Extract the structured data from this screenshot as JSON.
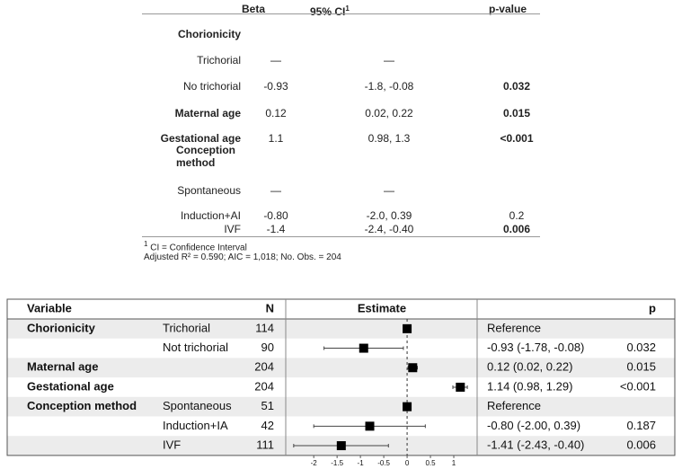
{
  "regression_table": {
    "headers": {
      "beta": "Beta",
      "ci": "95% CI",
      "p": "p-value"
    },
    "marker": "1",
    "rows": [
      {
        "label": "Chorionicity",
        "beta": null,
        "ci": null,
        "p": null,
        "bold_label": true,
        "bold_p": false
      },
      {
        "label": "Trichorial",
        "beta": "—",
        "ci": "—",
        "p": null,
        "bold_label": false,
        "bold_p": false
      },
      {
        "label": "No trichorial",
        "beta": "-0.93",
        "ci": "-1.8, -0.08",
        "p": "0.032",
        "bold_label": false,
        "bold_p": true
      },
      {
        "label": "Maternal age",
        "beta": "0.12",
        "ci": "0.02, 0.22",
        "p": "0.015",
        "bold_label": true,
        "bold_p": true
      },
      {
        "label": "Gestational age",
        "beta": "1.1",
        "ci": "0.98, 1.3",
        "p": "<0.001",
        "bold_label": true,
        "bold_p": true
      },
      {
        "label": "Conception method",
        "beta": null,
        "ci": null,
        "p": null,
        "bold_label": true,
        "bold_p": false
      },
      {
        "label": "Spontaneous",
        "beta": "—",
        "ci": "—",
        "p": null,
        "bold_label": false,
        "bold_p": false
      },
      {
        "label": "Induction+AI",
        "beta": "-0.80",
        "ci": "-2.0, 0.39",
        "p": "0.2",
        "bold_label": false,
        "bold_p": false
      },
      {
        "label": "IVF",
        "beta": "-1.4",
        "ci": "-2.4, -0.40",
        "p": "0.006",
        "bold_label": false,
        "bold_p": true
      }
    ],
    "footnotes": [
      "CI = Confidence Interval",
      "Adjusted R² = 0.590; AIC = 1,018; No. Obs. = 204"
    ]
  },
  "forest_plot": {
    "headers": {
      "variable": "Variable",
      "n": "N",
      "estimate": "Estimate",
      "p": "p"
    },
    "xlim": [
      -2.6,
      1.5
    ],
    "xticks": [
      -2,
      -1.5,
      -1,
      -0.5,
      0,
      0.5,
      1
    ],
    "rows": [
      {
        "variable": "Chorionicity",
        "group": "Trichorial",
        "n": 114,
        "estimate": 0,
        "low": null,
        "high": null,
        "ci_text": "Reference",
        "p": null
      },
      {
        "variable": null,
        "group": "Not trichorial",
        "n": 90,
        "estimate": -0.93,
        "low": -1.78,
        "high": -0.08,
        "ci_text": "-0.93 (-1.78, -0.08)",
        "p": "0.032"
      },
      {
        "variable": "Maternal age",
        "group": null,
        "n": 204,
        "estimate": 0.12,
        "low": 0.02,
        "high": 0.22,
        "ci_text": "0.12 (0.02, 0.22)",
        "p": "0.015"
      },
      {
        "variable": "Gestational age",
        "group": null,
        "n": 204,
        "estimate": 1.14,
        "low": 0.98,
        "high": 1.29,
        "ci_text": "1.14 (0.98, 1.29)",
        "p": "<0.001"
      },
      {
        "variable": "Conception method",
        "group": "Spontaneous",
        "n": 51,
        "estimate": 0,
        "low": null,
        "high": null,
        "ci_text": "Reference",
        "p": null
      },
      {
        "variable": null,
        "group": "Induction+IA",
        "n": 42,
        "estimate": -0.8,
        "low": -2.0,
        "high": 0.39,
        "ci_text": "-0.80 (-2.00, 0.39)",
        "p": "0.187"
      },
      {
        "variable": null,
        "group": "IVF",
        "n": 111,
        "estimate": -1.41,
        "low": -2.43,
        "high": -0.4,
        "ci_text": "-1.41 (-2.43, -0.40)",
        "p": "0.006"
      }
    ]
  }
}
